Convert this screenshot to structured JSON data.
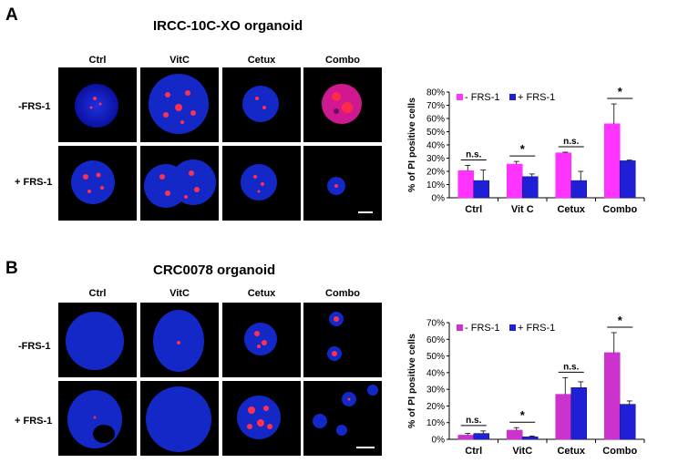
{
  "colors": {
    "minus_frs_a": "#ff33ff",
    "minus_frs_b": "#cc33cc",
    "plus_frs": "#1f1fd6",
    "nucleus": "#1020d0",
    "pi": "#ff2a4a",
    "background": "#000000"
  },
  "panel_a": {
    "letter": "A",
    "title": "IRCC-10C-XO organoid",
    "columns": [
      "Ctrl",
      "VitC",
      "Cetux",
      "Combo"
    ],
    "rows": [
      "-FRS-1",
      "+ FRS-1"
    ],
    "icons": [
      "organoid-image",
      "organoid-image",
      "organoid-image",
      "organoid-image",
      "organoid-image",
      "organoid-image",
      "organoid-image",
      "organoid-image"
    ]
  },
  "panel_b": {
    "letter": "B",
    "title": "CRC0078 organoid",
    "columns": [
      "Ctrl",
      "VitC",
      "Cetux",
      "Combo"
    ],
    "rows": [
      "-FRS-1",
      "+ FRS-1"
    ],
    "icons": [
      "organoid-image",
      "organoid-image",
      "organoid-image",
      "organoid-image",
      "organoid-image",
      "organoid-image",
      "organoid-image",
      "organoid-image"
    ]
  },
  "chart_data": [
    {
      "type": "bar",
      "ylabel": "% of PI positive cells",
      "categories": [
        "Ctrl",
        "Vit C",
        "Cetux",
        "Combo"
      ],
      "yticks": [
        "0%",
        "10%",
        "20%",
        "30%",
        "40%",
        "50%",
        "60%",
        "70%",
        "80%"
      ],
      "ylim": [
        0,
        80
      ],
      "series": [
        {
          "name": "- FRS-1",
          "values": [
            20.5,
            25.5,
            34,
            56
          ],
          "errors": [
            4,
            2,
            0.5,
            15
          ]
        },
        {
          "name": "+ FRS-1",
          "values": [
            13,
            16,
            13,
            28
          ],
          "errors": [
            8,
            2,
            7,
            0.5
          ]
        }
      ],
      "significance": [
        "n.s.",
        "*",
        "n.s.",
        "*"
      ],
      "legend": "top-left",
      "grid": false
    },
    {
      "type": "bar",
      "ylabel": "% of PI positive cells",
      "categories": [
        "Ctrl",
        "VitC",
        "Cetux",
        "Combo"
      ],
      "yticks": [
        "0%",
        "10%",
        "20%",
        "30%",
        "40%",
        "50%",
        "60%",
        "70%"
      ],
      "ylim": [
        0,
        70
      ],
      "series": [
        {
          "name": "- FRS-1",
          "values": [
            2.5,
            5.5,
            27,
            52
          ],
          "errors": [
            1,
            1.5,
            10,
            12
          ]
        },
        {
          "name": "+ FRS-1",
          "values": [
            3.5,
            1.5,
            31,
            21
          ],
          "errors": [
            1.5,
            0.5,
            3.5,
            2
          ]
        }
      ],
      "significance": [
        "n.s.",
        "*",
        "n.s.",
        "*"
      ],
      "legend": "top-left",
      "grid": false
    }
  ]
}
